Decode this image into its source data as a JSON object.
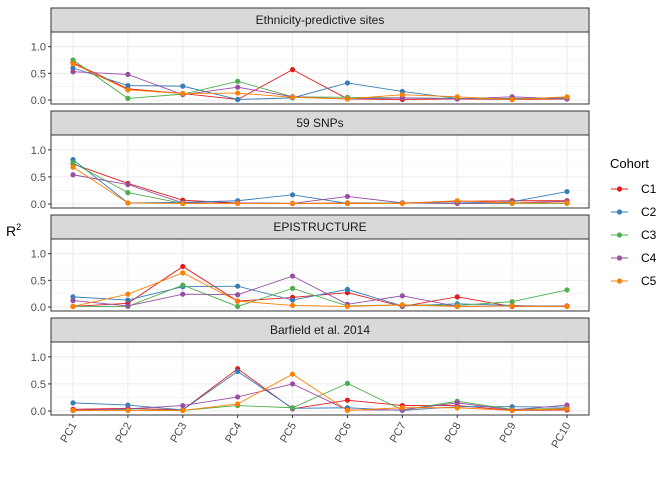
{
  "chart_data": {
    "type": "line",
    "ylabel": "R",
    "ylabel_superscript": "2",
    "categories": [
      "PC1",
      "PC2",
      "PC3",
      "PC4",
      "PC5",
      "PC6",
      "PC7",
      "PC8",
      "PC9",
      "PC10"
    ],
    "yticks": [
      "0.0",
      "0.5",
      "1.0"
    ],
    "ylim": [
      0,
      1.2
    ],
    "legend": {
      "title": "Cohort",
      "position": "right",
      "entries": [
        "C1",
        "C2",
        "C3",
        "C4",
        "C5"
      ]
    },
    "colors": {
      "C1": "#e41a1c",
      "C2": "#377eb8",
      "C3": "#4daf4a",
      "C4": "#984ea3",
      "C5": "#ff7f00"
    },
    "panels": [
      {
        "title": "Ethnicity-predictive sites",
        "series": [
          {
            "name": "C1",
            "values": [
              0.7,
              0.21,
              0.12,
              0.01,
              0.57,
              0.02,
              0.01,
              0.02,
              0.01,
              0.02
            ]
          },
          {
            "name": "C2",
            "values": [
              0.6,
              0.27,
              0.26,
              0.01,
              0.04,
              0.32,
              0.16,
              0.03,
              0.03,
              0.04
            ]
          },
          {
            "name": "C3",
            "values": [
              0.75,
              0.03,
              0.11,
              0.35,
              0.06,
              0.05,
              0.04,
              0.03,
              0.02,
              0.04
            ]
          },
          {
            "name": "C4",
            "values": [
              0.53,
              0.48,
              0.1,
              0.24,
              0.06,
              0.02,
              0.04,
              0.02,
              0.06,
              0.02
            ]
          },
          {
            "name": "C5",
            "values": [
              0.68,
              0.19,
              0.12,
              0.13,
              0.05,
              0.02,
              0.1,
              0.06,
              0.01,
              0.06
            ]
          }
        ]
      },
      {
        "title": "59 SNPs",
        "series": [
          {
            "name": "C1",
            "values": [
              0.74,
              0.38,
              0.07,
              0.02,
              0.01,
              0.02,
              0.02,
              0.05,
              0.06,
              0.06
            ]
          },
          {
            "name": "C2",
            "values": [
              0.82,
              0.02,
              0.03,
              0.06,
              0.17,
              0.01,
              0.02,
              0.02,
              0.04,
              0.23
            ]
          },
          {
            "name": "C3",
            "values": [
              0.76,
              0.21,
              0.01,
              0.02,
              0.01,
              0.01,
              0.02,
              0.01,
              0.01,
              0.01
            ]
          },
          {
            "name": "C4",
            "values": [
              0.54,
              0.36,
              0.02,
              0.02,
              0.01,
              0.14,
              0.02,
              0.01,
              0.02,
              0.05
            ]
          },
          {
            "name": "C5",
            "values": [
              0.68,
              0.02,
              0.01,
              0.01,
              0.01,
              0.01,
              0.01,
              0.06,
              0.02,
              0.02
            ]
          }
        ]
      },
      {
        "title": "EPISTRUCTURE",
        "series": [
          {
            "name": "C1",
            "values": [
              0.01,
              0.07,
              0.76,
              0.11,
              0.18,
              0.27,
              0.01,
              0.19,
              0.01,
              0.02
            ]
          },
          {
            "name": "C2",
            "values": [
              0.19,
              0.13,
              0.38,
              0.39,
              0.13,
              0.33,
              0.02,
              0.06,
              0.03,
              0.01
            ]
          },
          {
            "name": "C3",
            "values": [
              0.01,
              0.01,
              0.41,
              0.01,
              0.35,
              0.02,
              0.04,
              0.03,
              0.1,
              0.32
            ]
          },
          {
            "name": "C4",
            "values": [
              0.12,
              0.02,
              0.24,
              0.23,
              0.58,
              0.05,
              0.21,
              0.01,
              0.02,
              0.01
            ]
          },
          {
            "name": "C5",
            "values": [
              0.01,
              0.24,
              0.64,
              0.11,
              0.03,
              0.01,
              0.04,
              0.01,
              0.02,
              0.01
            ]
          }
        ]
      },
      {
        "title": "Barfield et al. 2014",
        "series": [
          {
            "name": "C1",
            "values": [
              0.03,
              0.05,
              0.02,
              0.78,
              0.04,
              0.2,
              0.1,
              0.1,
              0.01,
              0.02
            ]
          },
          {
            "name": "C2",
            "values": [
              0.15,
              0.11,
              0.02,
              0.73,
              0.05,
              0.06,
              0.01,
              0.08,
              0.08,
              0.07
            ]
          },
          {
            "name": "C3",
            "values": [
              0.01,
              0.02,
              0.01,
              0.1,
              0.06,
              0.51,
              0.02,
              0.18,
              0.03,
              0.05
            ]
          },
          {
            "name": "C4",
            "values": [
              0.01,
              0.04,
              0.1,
              0.26,
              0.5,
              0.02,
              0.02,
              0.15,
              0.02,
              0.11
            ]
          },
          {
            "name": "C5",
            "values": [
              0.01,
              0.01,
              0.01,
              0.13,
              0.68,
              0.01,
              0.06,
              0.06,
              0.01,
              0.04
            ]
          }
        ]
      }
    ]
  }
}
